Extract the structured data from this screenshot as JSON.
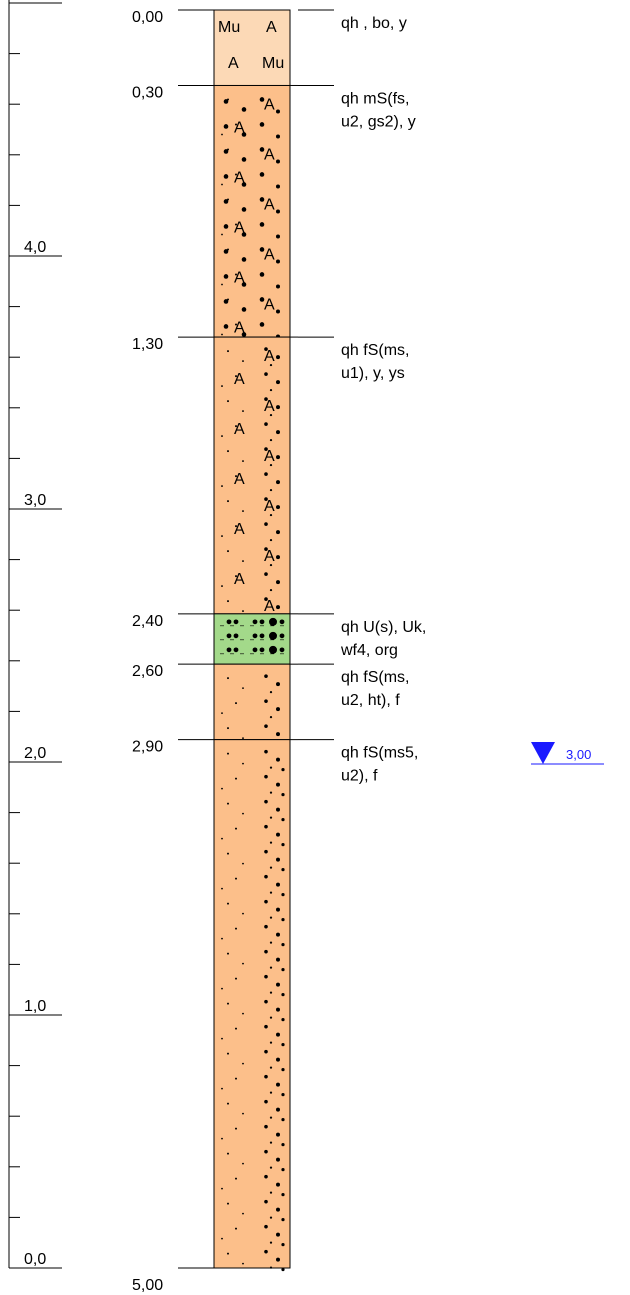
{
  "scale": {
    "labels": [
      "4,0",
      "3,0",
      "2,0",
      "1,0",
      "0,0"
    ]
  },
  "layers": [
    {
      "top_label": "0,00",
      "top": 0.0,
      "bottom": 0.3,
      "description": [
        "qh  , bo, y"
      ],
      "fill": "#fcd9b6",
      "pattern": "mu"
    },
    {
      "top_label": "0,30",
      "top": 0.3,
      "bottom": 1.3,
      "description": [
        "qh  mS(fs,",
        "u2, gs2), y"
      ],
      "fill": "#fcbf8a",
      "pattern": "ms-a"
    },
    {
      "top_label": "1,30",
      "top": 1.3,
      "bottom": 2.4,
      "description": [
        "qh  fS(ms,",
        "u1), y, ys"
      ],
      "fill": "#fcbf8a",
      "pattern": "fs-a"
    },
    {
      "top_label": "2,40",
      "top": 2.4,
      "bottom": 2.6,
      "description": [
        "qh  U(s), Uk,",
        "wf4, org"
      ],
      "fill": "#a3d98a",
      "pattern": "u"
    },
    {
      "top_label": "2,60",
      "top": 2.6,
      "bottom": 2.9,
      "description": [
        "qh  fS(ms,",
        "u2, ht), f"
      ],
      "fill": "#fcbf8a",
      "pattern": "fs"
    },
    {
      "top_label": "2,90",
      "top": 2.9,
      "bottom": 5.0,
      "description": [
        "qh  fS(ms5,",
        "u2), f"
      ],
      "fill": "#fcbf8a",
      "pattern": "fs-ms"
    }
  ],
  "base_label": "5,00",
  "water_level": {
    "depth": 3.0,
    "label": "3,00",
    "color": "#1a1aff"
  },
  "colors": {
    "line": "#000000"
  }
}
